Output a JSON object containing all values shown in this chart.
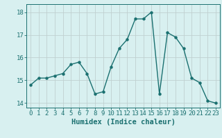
{
  "x": [
    0,
    1,
    2,
    3,
    4,
    5,
    6,
    7,
    8,
    9,
    10,
    11,
    12,
    13,
    14,
    15,
    16,
    17,
    18,
    19,
    20,
    21,
    22,
    23
  ],
  "y": [
    14.8,
    15.1,
    15.1,
    15.2,
    15.3,
    15.7,
    15.8,
    15.3,
    14.4,
    14.5,
    15.6,
    16.4,
    16.8,
    17.7,
    17.7,
    18.0,
    14.4,
    17.1,
    16.9,
    16.4,
    15.1,
    14.9,
    14.1,
    14.0
  ],
  "line_color": "#1a7070",
  "marker": "o",
  "marker_size": 2.2,
  "bg_color": "#d8f0f0",
  "grid_color": "#c0d0d0",
  "xlabel": "Humidex (Indice chaleur)",
  "xlim": [
    -0.5,
    23.5
  ],
  "ylim": [
    13.8,
    18.35
  ],
  "yticks": [
    14,
    15,
    16,
    17,
    18
  ],
  "xticks": [
    0,
    1,
    2,
    3,
    4,
    5,
    6,
    7,
    8,
    9,
    10,
    11,
    12,
    13,
    14,
    15,
    16,
    17,
    18,
    19,
    20,
    21,
    22,
    23
  ],
  "tick_color": "#1a7070",
  "label_color": "#1a7070",
  "xlabel_fontsize": 7.5,
  "tick_fontsize": 6.5,
  "line_width": 1.0
}
